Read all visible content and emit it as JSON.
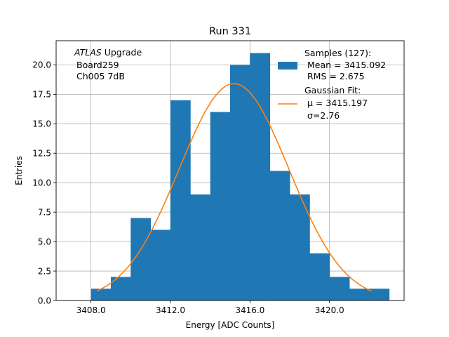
{
  "chart_data": {
    "type": "bar",
    "title": "Run 331",
    "xlabel": "Energy [ADC Counts]",
    "ylabel": "Entries",
    "xlim": [
      3406.25,
      3423.75
    ],
    "ylim": [
      0,
      22.05
    ],
    "grid": true,
    "bin_edges": [
      3408,
      3409,
      3410,
      3411,
      3412,
      3413,
      3414,
      3415,
      3416,
      3417,
      3418,
      3419,
      3420,
      3421,
      3422,
      3423
    ],
    "values": [
      1,
      2,
      7,
      6,
      17,
      9,
      16,
      20,
      21,
      11,
      9,
      4,
      2,
      1,
      1
    ],
    "xticks": [
      3408,
      3412,
      3416,
      3420
    ],
    "xtick_labels": [
      "3408.0",
      "3412.0",
      "3416.0",
      "3420.0"
    ],
    "yticks": [
      0,
      2.5,
      5,
      7.5,
      10,
      12.5,
      15,
      17.5,
      20
    ],
    "ytick_labels": [
      "0.0",
      "2.5",
      "5.0",
      "7.5",
      "10.0",
      "12.5",
      "15.0",
      "17.5",
      "20.0"
    ],
    "fit": {
      "type": "gaussian",
      "mu": 3415.197,
      "sigma": 2.76,
      "amplitude": 18.4,
      "x_range": [
        3408.3,
        3422.1
      ]
    },
    "colors": {
      "bars": "#1f77b4",
      "fit": "#ff7f0e",
      "grid": "#b0b0b0"
    },
    "annotation": {
      "italic": "ATLAS",
      "line1_rest": " Upgrade",
      "line2": "Board259",
      "line3": "Ch005 7dB"
    },
    "legend": {
      "position": "top-right",
      "hist_line1": "Samples (127):",
      "hist_line2": "Mean = 3415.092",
      "hist_line3": "RMS = 2.675",
      "fit_line1": "Gaussian Fit:",
      "fit_line2": "μ = 3415.197",
      "fit_line3": "σ=2.76"
    }
  }
}
